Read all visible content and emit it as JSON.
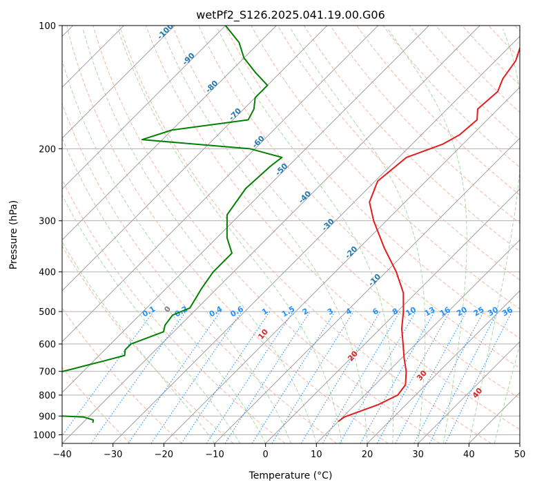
{
  "chart_data": {
    "type": "line",
    "title": "wetPf2_S126.2025.041.19.00.G06",
    "xlabel": "Temperature (°C)",
    "ylabel": "Pressure (hPa)",
    "xlim": [
      -40,
      50
    ],
    "ylim": [
      1050,
      100
    ],
    "y_scale": "log",
    "grid": true,
    "x_ticks": [
      "−40",
      "−30",
      "−20",
      "−10",
      "0",
      "10",
      "20",
      "30",
      "40",
      "50"
    ],
    "x_tick_values": [
      -40,
      -30,
      -20,
      -10,
      0,
      10,
      20,
      30,
      40,
      50
    ],
    "y_ticks": [
      "100",
      "200",
      "300",
      "400",
      "500",
      "600",
      "700",
      "800",
      "900",
      "1000"
    ],
    "y_tick_values": [
      100,
      200,
      300,
      400,
      500,
      600,
      700,
      800,
      900,
      1000
    ],
    "skew_isotherms_labels": [
      "-100",
      "-90",
      "-80",
      "-70",
      "-60",
      "-50",
      "-40",
      "-30",
      "-20",
      "-10"
    ],
    "skew_isotherms_values": [
      -100,
      -90,
      -80,
      -70,
      -60,
      -50,
      -40,
      -30,
      -20,
      -10
    ],
    "skew_isotherms_label_color": "#1f77b4",
    "mixing_ratio_labels": [
      "0.1",
      "0.2",
      "0.4",
      "0.6",
      "1",
      "1.5",
      "2",
      "3",
      "4",
      "6",
      "8",
      "10",
      "13",
      "16",
      "20",
      "25",
      "30",
      "36"
    ],
    "mixing_ratio_values": [
      0.1,
      0.2,
      0.4,
      0.6,
      1,
      1.5,
      2,
      3,
      4,
      6,
      8,
      10,
      13,
      16,
      20,
      25,
      30,
      36
    ],
    "mixing_ratio_color": "#1e90ff",
    "moist_adiabat_labels": [
      "0",
      "10",
      "20",
      "30",
      "40"
    ],
    "moist_adiabat_values": [
      0,
      10,
      20,
      30,
      40
    ],
    "moist_adiabat_label_colors": [
      "#808080",
      "#d62728",
      "#d62728",
      "#d62728",
      "#d62728"
    ],
    "series": [
      {
        "name": "Temperature",
        "color": "#e41a1c",
        "pressure": [
          928,
          905,
          880,
          845,
          800,
          755,
          700,
          650,
          600,
          550,
          500,
          450,
          400,
          350,
          300,
          270,
          240,
          210,
          195,
          185,
          170,
          160,
          145,
          135,
          122,
          112,
          100
        ],
        "temperature": [
          10.0,
          10.3,
          12.0,
          14.5,
          16.5,
          16.0,
          13.5,
          10.5,
          7.5,
          4.2,
          1.2,
          -2.5,
          -8.0,
          -15.0,
          -22.5,
          -27.0,
          -29.5,
          -28.5,
          -24.0,
          -22.5,
          -22.0,
          -24.0,
          -23.5,
          -25.0,
          -26.0,
          -28.0,
          -32.0
        ]
      },
      {
        "name": "Dewpoint",
        "color": "#008000",
        "pressure": [
          935,
          920,
          905,
          895,
          870,
          860,
          840,
          825,
          815,
          790,
          760,
          745,
          720,
          690,
          660,
          640,
          620,
          600,
          560,
          540,
          510,
          490,
          440,
          400,
          360,
          330,
          290,
          250,
          220,
          210,
          200,
          190,
          180,
          170,
          160,
          150,
          140,
          130,
          120,
          110,
          100
        ],
        "temperature": [
          -38.0,
          -38.5,
          -41.0,
          -50.0,
          -64.0,
          -65.0,
          -61.0,
          -61.0,
          -65.0,
          -70.0,
          -70.0,
          -64.0,
          -57.0,
          -52.5,
          -48.0,
          -45.0,
          -46.0,
          -46.0,
          -42.0,
          -43.0,
          -43.5,
          -41.5,
          -43.0,
          -44.0,
          -44.0,
          -48.0,
          -52.5,
          -54.0,
          -53.5,
          -53.0,
          -61.0,
          -84.0,
          -80.0,
          -67.0,
          -68.0,
          -70.0,
          -70.0,
          -75.0,
          -80.0,
          -84.0,
          -90.0
        ]
      }
    ]
  }
}
